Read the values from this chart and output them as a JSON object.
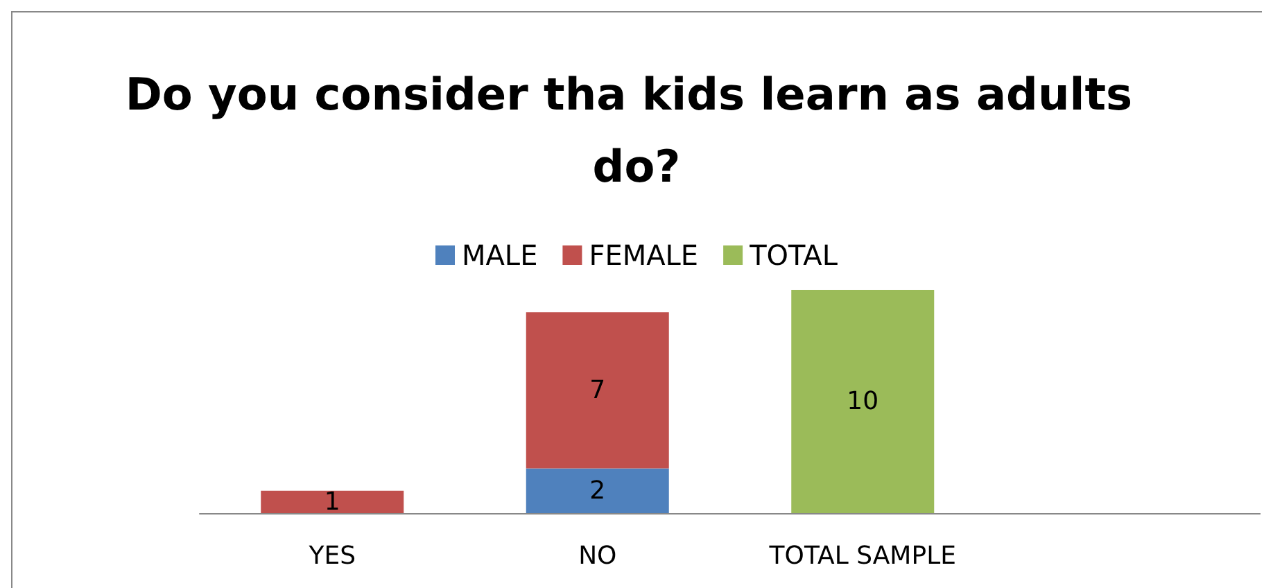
{
  "chart_data": {
    "type": "bar",
    "title": "Do you consider tha kids learn as adults do?",
    "categories": [
      "YES",
      "NO",
      "TOTAL SAMPLE",
      null
    ],
    "stacked": true,
    "data_labels": true,
    "legend": "top",
    "grid": false,
    "series": [
      {
        "name": "MALE",
        "color": "#4f81bd",
        "values": [
          null,
          2,
          null,
          null
        ]
      },
      {
        "name": "FEMALE",
        "color": "#c0504d",
        "values": [
          1,
          7,
          null,
          null
        ]
      },
      {
        "name": "TOTAL",
        "color": "#9bbb59",
        "values": [
          null,
          null,
          10,
          null
        ]
      }
    ]
  }
}
